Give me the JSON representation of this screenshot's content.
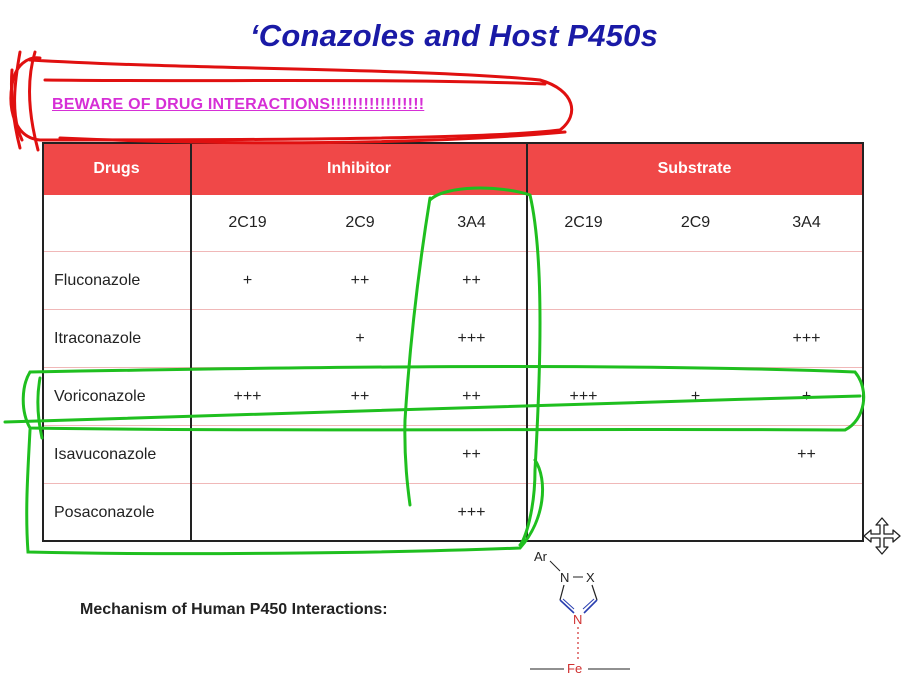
{
  "title": "‘Conazoles and Host P450s",
  "warning": "BEWARE OF DRUG INTERACTIONS!!!!!!!!!!!!!!!!!",
  "table": {
    "headers": {
      "drugs": "Drugs",
      "inhibitor": "Inhibitor",
      "substrate": "Substrate"
    },
    "subheaders": [
      "2C19",
      "2C9",
      "3A4",
      "2C19",
      "2C9",
      "3A4"
    ],
    "rows": [
      {
        "drug": "Fluconazole",
        "cells": [
          "+",
          "++",
          "++",
          "",
          "",
          ""
        ]
      },
      {
        "drug": "Itraconazole",
        "cells": [
          "",
          "+",
          "+++",
          "",
          "",
          "+++"
        ]
      },
      {
        "drug": "Voriconazole",
        "cells": [
          "+++",
          "++",
          "++",
          "+++",
          "+",
          "+"
        ]
      },
      {
        "drug": "Isavuconazole",
        "cells": [
          "",
          "",
          "++",
          "",
          "",
          "++"
        ]
      },
      {
        "drug": "Posaconazole",
        "cells": [
          "",
          "",
          "+++",
          "",
          "",
          ""
        ]
      }
    ]
  },
  "mechanism_label": "Mechanism of Human P450 Interactions:",
  "structure": {
    "ar": "Ar",
    "n1": "N",
    "x": "X",
    "n2": "N",
    "fe": "Fe"
  },
  "colors": {
    "title": "#1a1aa6",
    "warning": "#d62fd6",
    "header_bg": "#f04848",
    "red_ink": "#e01010",
    "green_ink": "#1fbf1f"
  },
  "icons": [
    "move-cursor-icon"
  ]
}
